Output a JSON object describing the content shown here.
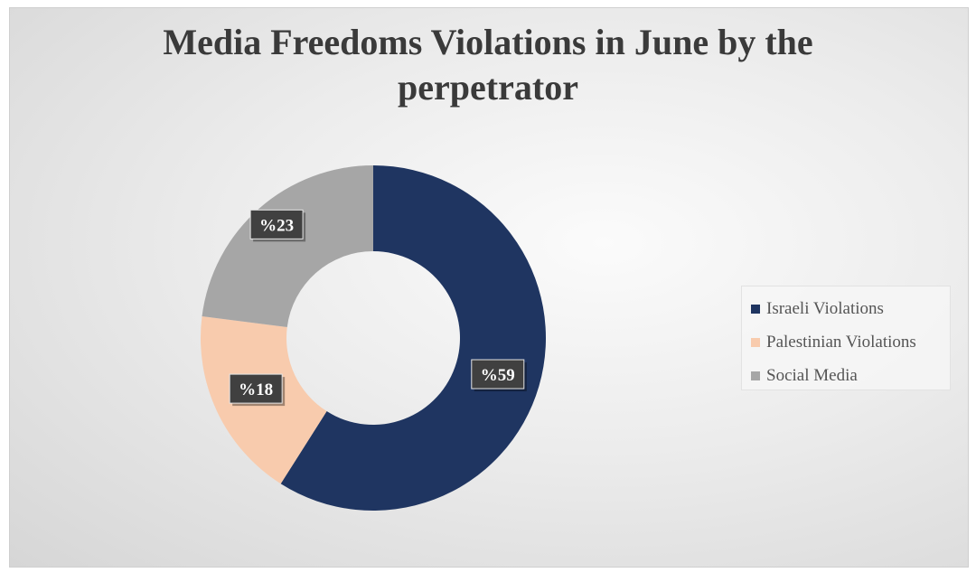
{
  "chart_data": {
    "type": "pie",
    "variant": "donut",
    "title": "Media Freedoms Violations in June by the perpetrator",
    "title_lines": [
      "Media Freedoms Violations in June by the",
      "perpetrator"
    ],
    "categories": [
      "Israeli Violations",
      "Palestinian Violations",
      "Social Media"
    ],
    "values": [
      59,
      18,
      23
    ],
    "data_labels": [
      "%59",
      "%18",
      "%23"
    ],
    "colors": [
      "#1f3561",
      "#f8cbad",
      "#a6a6a6"
    ],
    "legend_position": "right"
  }
}
